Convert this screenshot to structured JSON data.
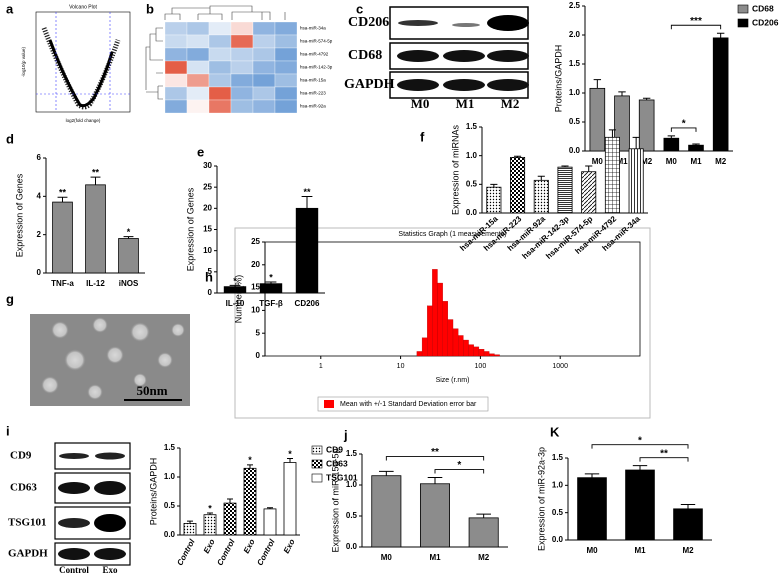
{
  "volcano": {
    "label": "a",
    "title": "Volcano Plot",
    "xlabel": "log2(fold change)",
    "ylabel": "-log10(p value)"
  },
  "heatmap": {
    "label": "b",
    "rows": [
      "hsa-miR-34a",
      "hsa-miR-574-5p",
      "hsa-miR-4792",
      "hsa-miR-142-3p",
      "hsa-miR-15a",
      "hsa-miR-223",
      "hsa-miR-92a"
    ],
    "values": [
      [
        -0.5,
        -0.6,
        -0.2,
        0.3,
        -0.8,
        -0.9
      ],
      [
        -0.4,
        -0.3,
        -0.6,
        1.2,
        -0.5,
        -0.7
      ],
      [
        -0.8,
        -0.9,
        -0.4,
        -0.5,
        -0.6,
        -1.0
      ],
      [
        1.3,
        -0.3,
        -0.7,
        -0.5,
        -0.8,
        -0.9
      ],
      [
        0.2,
        0.8,
        -0.6,
        -0.9,
        -1.0,
        -0.7
      ],
      [
        -0.6,
        -0.2,
        1.3,
        -0.8,
        -0.6,
        -1.0
      ],
      [
        -0.9,
        0.1,
        1.1,
        -0.7,
        -0.8,
        -1.0
      ]
    ],
    "vlim": [
      -1.5,
      1.5
    ],
    "colors": [
      "#2f73c4",
      "#ffffff",
      "#e0452b"
    ]
  },
  "tem": {
    "label": "g",
    "scale_text": "50nm"
  },
  "blots": [
    {
      "label": "c",
      "proteins": [
        "CD206",
        "CD68",
        "GAPDH"
      ],
      "lanes": [
        "M0",
        "M1",
        "M2"
      ]
    },
    {
      "label": "i",
      "proteins": [
        "CD9",
        "CD63",
        "TSG101",
        "GAPDH"
      ],
      "lanes": [
        "Control",
        "Exo"
      ]
    }
  ],
  "chart_data": [
    {
      "type": "bar",
      "label": "c",
      "ylabel": "Proteins/GAPDH",
      "categories": [
        "M0",
        "M1",
        "M2",
        "M0",
        "M1",
        "M2"
      ],
      "series": [
        {
          "name": "CD68",
          "color": "#8c8c8c",
          "values": [
            1.08,
            0.95,
            0.88,
            null,
            null,
            null
          ],
          "errors": [
            0.15,
            0.07,
            0.03,
            null,
            null,
            null
          ]
        },
        {
          "name": "CD206",
          "color": "#000000",
          "values": [
            null,
            null,
            null,
            0.22,
            0.1,
            1.95
          ],
          "errors": [
            null,
            null,
            null,
            0.04,
            0.02,
            0.08
          ]
        }
      ],
      "brackets": [
        {
          "from": 3,
          "to": 4,
          "label": "*"
        },
        {
          "from": 3,
          "to": 5,
          "label": "***"
        }
      ],
      "ylim": [
        0,
        2.5
      ],
      "yticks": [
        {
          "value": 0,
          "label": "0.0"
        },
        {
          "value": 0.5,
          "label": "0.5"
        },
        {
          "value": 1,
          "label": "1.0"
        },
        {
          "value": 1.5,
          "label": "1.5"
        },
        {
          "value": 2,
          "label": "2.0"
        },
        {
          "value": 2.5,
          "label": "2.5"
        }
      ]
    },
    {
      "type": "bar",
      "label": "d",
      "ylabel": "Expression of Genes",
      "categories": [
        "TNF-a",
        "IL-12",
        "iNOS"
      ],
      "values": [
        3.7,
        4.6,
        1.8
      ],
      "errors": [
        0.25,
        0.4,
        0.1
      ],
      "bar_annotations": [
        "**",
        "**",
        "*"
      ],
      "color": "#8c8c8c",
      "ylim": [
        0,
        6
      ],
      "yticks": [
        0,
        2,
        4,
        6
      ]
    },
    {
      "type": "bar",
      "label": "e",
      "ylabel": "Expression of Genes",
      "categories": [
        "IL-10",
        "TGF-β",
        "CD206"
      ],
      "values": [
        1.5,
        2.2,
        20
      ],
      "errors": [
        0.3,
        0.4,
        2.8
      ],
      "bar_annotations": [
        "*",
        "*",
        "**"
      ],
      "color": "#000000",
      "ylim": [
        0,
        30
      ],
      "yticks": [
        0,
        5,
        10,
        15,
        20,
        25,
        30
      ]
    },
    {
      "type": "bar",
      "label": "f",
      "ylabel": "Expression of miRNAs",
      "categories": [
        "hsa-miR-15a",
        "hsa-miR-223",
        "hsa-miR-92a",
        "hsa-miR-142-3p",
        "hsa-miR-574-5p",
        "hsa-miR-4792",
        "hsa-miR-34a"
      ],
      "values": [
        0.45,
        0.97,
        0.57,
        0.8,
        0.72,
        1.32,
        1.12
      ],
      "errors": [
        0.05,
        0.02,
        0.07,
        0.02,
        0.1,
        0.13,
        0.2
      ],
      "color": "#ffffff",
      "patterns": [
        "dots",
        "checker",
        "dots",
        "dense",
        "diag",
        "grid",
        "vlines"
      ],
      "ylim": [
        0,
        1.5
      ],
      "yticks": [
        {
          "value": 0,
          "label": "0.0"
        },
        {
          "value": 0.5,
          "label": "0.5"
        },
        {
          "value": 1,
          "label": "1.0"
        },
        {
          "value": 1.5,
          "label": "1.5"
        }
      ]
    },
    {
      "type": "histogram",
      "label": "h",
      "title": "Statistics Graph (1 measurements)",
      "xlabel": "Size (r.nm)",
      "ylabel": "Number (%)",
      "legend": "Mean with +/-1 Standard Deviation error bar",
      "bins": [
        16,
        18.6,
        21.6,
        25.0,
        29.0,
        33.7,
        39.1,
        45.4,
        52.7,
        61.2,
        71.1,
        82.5,
        95.8,
        111.2,
        129.1,
        149.9,
        174.0
      ],
      "values": [
        1,
        4,
        11,
        19,
        16,
        12,
        8,
        6,
        4.5,
        3.5,
        2.5,
        2,
        1.5,
        1,
        0.5,
        0.3
      ],
      "color": "#ff0000",
      "xscale": "log",
      "xlim": [
        0.2,
        10000
      ],
      "xticks": [
        1,
        10,
        100,
        1000
      ],
      "ylim": [
        0,
        25
      ],
      "yticks": [
        0,
        5,
        10,
        15,
        20,
        25
      ]
    },
    {
      "type": "bar",
      "label": "i",
      "ylabel": "Proteins/GAPDH",
      "categories": [
        "Control",
        "Exo",
        "Control",
        "Exo",
        "Control",
        "Exo"
      ],
      "series": [
        {
          "name": "CD9",
          "color": "#ffffff",
          "pattern": "dots",
          "values": [
            0.2,
            0.35,
            null,
            null,
            null,
            null
          ],
          "errors": [
            0.04,
            0.03,
            null,
            null,
            null,
            null
          ]
        },
        {
          "name": "CD63",
          "color": "#ffffff",
          "pattern": "checker",
          "values": [
            null,
            null,
            0.55,
            1.15,
            null,
            null
          ],
          "errors": [
            null,
            null,
            0.07,
            0.06,
            null,
            null
          ]
        },
        {
          "name": "TSG101",
          "color": "#ffffff",
          "values": [
            null,
            null,
            null,
            null,
            0.45,
            1.25
          ],
          "errors": [
            null,
            null,
            null,
            null,
            0.02,
            0.07
          ]
        }
      ],
      "bar_annotations": [
        null,
        "*",
        null,
        "*",
        null,
        "*"
      ],
      "ylim": [
        0,
        1.5
      ],
      "yticks": [
        {
          "value": 0,
          "label": "0.0"
        },
        {
          "value": 0.5,
          "label": "0.5"
        },
        {
          "value": 1,
          "label": "1.0"
        },
        {
          "value": 1.5,
          "label": "1.5"
        }
      ]
    },
    {
      "type": "bar",
      "label": "j",
      "ylabel": "Expression of miR-15a-5p",
      "categories": [
        "M0",
        "M1",
        "M2"
      ],
      "values": [
        1.15,
        1.02,
        0.47
      ],
      "errors": [
        0.07,
        0.1,
        0.06
      ],
      "color": "#8c8c8c",
      "brackets": [
        {
          "from": 1,
          "to": 2,
          "label": "*"
        },
        {
          "from": 0,
          "to": 2,
          "label": "**"
        }
      ],
      "ylim": [
        0,
        1.5
      ],
      "yticks": [
        {
          "value": 0,
          "label": "0.0"
        },
        {
          "value": 0.5,
          "label": "0.5"
        },
        {
          "value": 1,
          "label": "1.0"
        },
        {
          "value": 1.5,
          "label": "1.5"
        }
      ]
    },
    {
      "type": "bar",
      "label": "K",
      "ylabel": "Expression of miR-92a-3p",
      "categories": [
        "M0",
        "M1",
        "M2"
      ],
      "values": [
        1.14,
        1.28,
        0.57
      ],
      "errors": [
        0.07,
        0.08,
        0.08
      ],
      "color": "#000000",
      "brackets": [
        {
          "from": 1,
          "to": 2,
          "label": "**"
        },
        {
          "from": 0,
          "to": 2,
          "label": "*"
        }
      ],
      "ylim": [
        0,
        1.5
      ],
      "yticks": [
        {
          "value": 0,
          "label": "0.0"
        },
        {
          "value": 0.5,
          "label": "0.5"
        },
        {
          "value": 1,
          "label": "1.0"
        },
        {
          "value": 1.5,
          "label": "1.5"
        }
      ]
    }
  ]
}
